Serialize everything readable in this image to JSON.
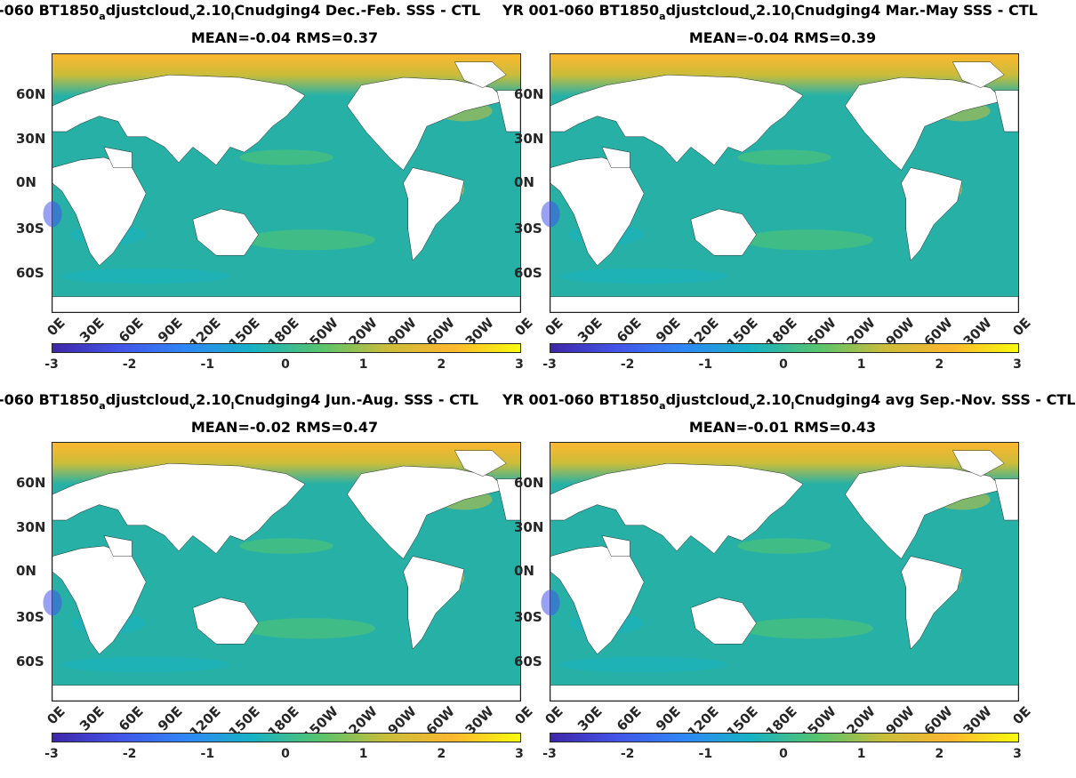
{
  "panels": [
    {
      "title_parts": [
        "-060 BT1850",
        "a",
        "djustcloud",
        "v",
        "2.10",
        "l",
        "Cnudging4  Dec.-Feb. SSS - CTL"
      ],
      "stats": "MEAN=-0.04   RMS=0.37"
    },
    {
      "title_parts": [
        "YR 001-060 BT1850",
        "a",
        "djustcloud",
        "v",
        "2.10",
        "l",
        "Cnudging4 Mar.-May SSS - CTL"
      ],
      "stats": "MEAN=-0.04   RMS=0.39"
    },
    {
      "title_parts": [
        "-060 BT1850",
        "a",
        "djustcloud",
        "v",
        "2.10",
        "l",
        "Cnudging4 Jun.-Aug. SSS - CTL"
      ],
      "stats": "MEAN=-0.02   RMS=0.47"
    },
    {
      "title_parts": [
        "YR 001-060 BT1850",
        "a",
        "djustcloud",
        "v",
        "2.10",
        "l",
        "Cnudging4 avg Sep.-Nov. SSS - CTL"
      ],
      "stats": "MEAN=-0.01   RMS=0.43"
    }
  ],
  "axes": {
    "lat_labels": [
      "60N",
      "30N",
      "0N",
      "30S",
      "60S"
    ],
    "lon_labels": [
      "0E",
      "30E",
      "60E",
      "90E",
      "120E",
      "150E",
      "180E",
      "150W",
      "120W",
      "90W",
      "60W",
      "30W",
      "0E"
    ]
  },
  "colorbar": {
    "ticks": [
      "-3",
      "-2",
      "-1",
      "0",
      "1",
      "2",
      "3"
    ],
    "colors": [
      "#3e26a8",
      "#4354e8",
      "#2e87f7",
      "#17b2c3",
      "#56c46e",
      "#cabd3a",
      "#fdb72f",
      "#f9fb0e"
    ]
  },
  "colors": {
    "ocean_base": "#27b1a6",
    "land": "#ffffff",
    "coast": "#000000"
  }
}
